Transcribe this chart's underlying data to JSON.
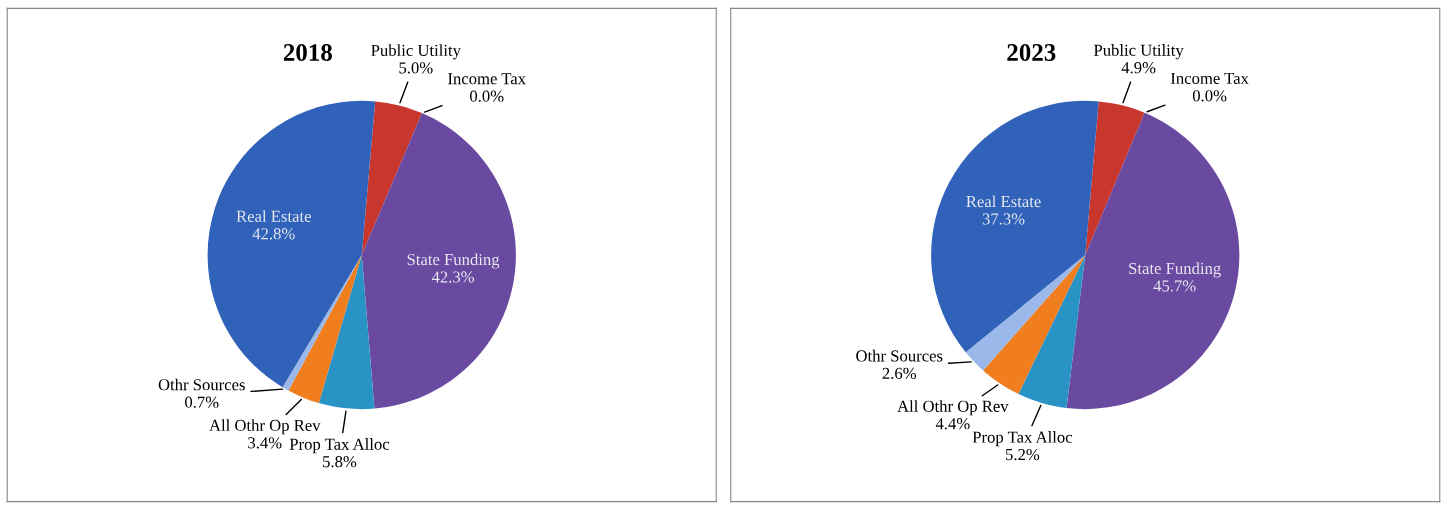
{
  "chart_data": [
    {
      "type": "pie",
      "title": "2018",
      "categories": [
        "Public Utility",
        "Income Tax",
        "State Funding",
        "Prop Tax Alloc",
        "All Othr Op Rev",
        "Othr Sources",
        "Real Estate"
      ],
      "values": [
        5.0,
        0.0,
        42.3,
        5.8,
        3.4,
        0.7,
        42.8
      ],
      "value_labels": [
        "5.0%",
        "0.0%",
        "42.3%",
        "5.8%",
        "3.4%",
        "0.7%",
        "42.8%"
      ],
      "colors": [
        "#c8372d",
        "#5a9b3c",
        "#6a4aa0",
        "#2a93c6",
        "#f07d1e",
        "#9ab8ea",
        "#2f62b8"
      ],
      "legend": false
    },
    {
      "type": "pie",
      "title": "2023",
      "categories": [
        "Public Utility",
        "Income Tax",
        "State Funding",
        "Prop Tax Alloc",
        "All Othr Op Rev",
        "Othr Sources",
        "Real Estate"
      ],
      "values": [
        4.9,
        0.0,
        45.7,
        5.2,
        4.4,
        2.6,
        37.3
      ],
      "value_labels": [
        "4.9%",
        "0.0%",
        "45.7%",
        "5.2%",
        "4.4%",
        "2.6%",
        "37.3%"
      ],
      "colors": [
        "#c8372d",
        "#5a9b3c",
        "#6a4aa0",
        "#2a93c6",
        "#f07d1e",
        "#9ab8ea",
        "#2f62b8"
      ],
      "legend": false
    }
  ]
}
